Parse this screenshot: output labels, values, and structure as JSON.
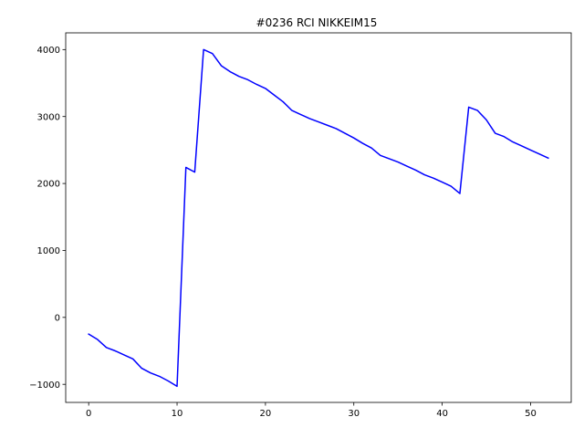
{
  "chart_data": {
    "type": "line",
    "title": "#0236 RCI NIKKEIM15",
    "xlabel": "",
    "ylabel": "",
    "xlim": [
      -2.6,
      54.6
    ],
    "ylim": [
      -1270,
      4250
    ],
    "xticks": [
      0,
      10,
      20,
      30,
      40,
      50
    ],
    "yticks": [
      -1000,
      0,
      1000,
      2000,
      3000,
      4000
    ],
    "grid": false,
    "line_color": "#0000ff",
    "series": [
      {
        "x": [
          0,
          1,
          2,
          3,
          4,
          5,
          6,
          7,
          8,
          9,
          10,
          11,
          12,
          13,
          14,
          15,
          16,
          17,
          18,
          19,
          20,
          21,
          22,
          23,
          24,
          25,
          26,
          27,
          28,
          29,
          30,
          31,
          32,
          33,
          34,
          35,
          36,
          37,
          38,
          39,
          40,
          41,
          42,
          43,
          44,
          45,
          46,
          47,
          48,
          49,
          50,
          51,
          52
        ],
        "values": [
          -250,
          -330,
          -450,
          -500,
          -560,
          -620,
          -760,
          -830,
          -880,
          -950,
          -1030,
          2240,
          2170,
          4000,
          3940,
          3760,
          3670,
          3600,
          3550,
          3480,
          3420,
          3320,
          3220,
          3090,
          3030,
          2970,
          2920,
          2870,
          2820,
          2750,
          2680,
          2600,
          2530,
          2420,
          2370,
          2320,
          2260,
          2200,
          2130,
          2080,
          2020,
          1960,
          1850,
          3140,
          3090,
          2950,
          2750,
          2700,
          2620,
          2560,
          2500,
          2440,
          2380
        ]
      }
    ]
  }
}
